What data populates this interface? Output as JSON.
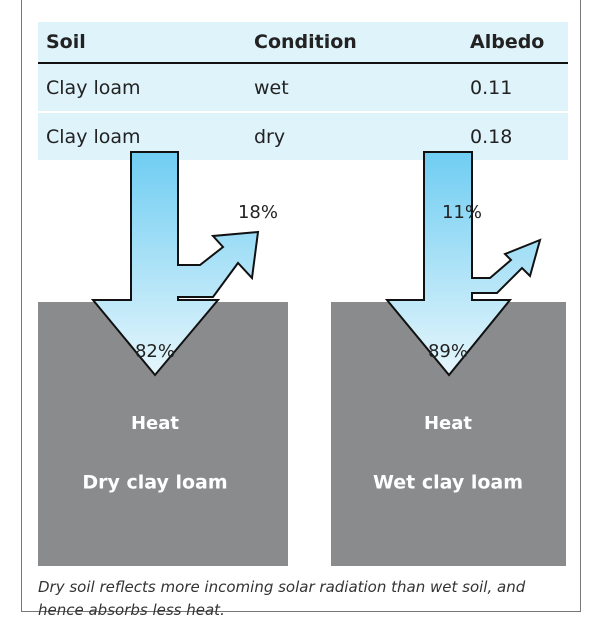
{
  "table": {
    "headers": [
      "Soil",
      "Condition",
      "Albedo"
    ],
    "rows": [
      [
        "Clay loam",
        "wet",
        "0.11"
      ],
      [
        "Clay loam",
        "dry",
        "0.18"
      ]
    ]
  },
  "panels": [
    {
      "reflected": "18%",
      "absorbed": "82%",
      "heat": "Heat",
      "label": "Dry clay loam"
    },
    {
      "reflected": "11%",
      "absorbed": "89%",
      "heat": "Heat",
      "label": "Wet clay loam"
    }
  ],
  "caption": "Dry soil reflects more incoming solar radiation than wet soil, and hence absorbs less heat."
}
